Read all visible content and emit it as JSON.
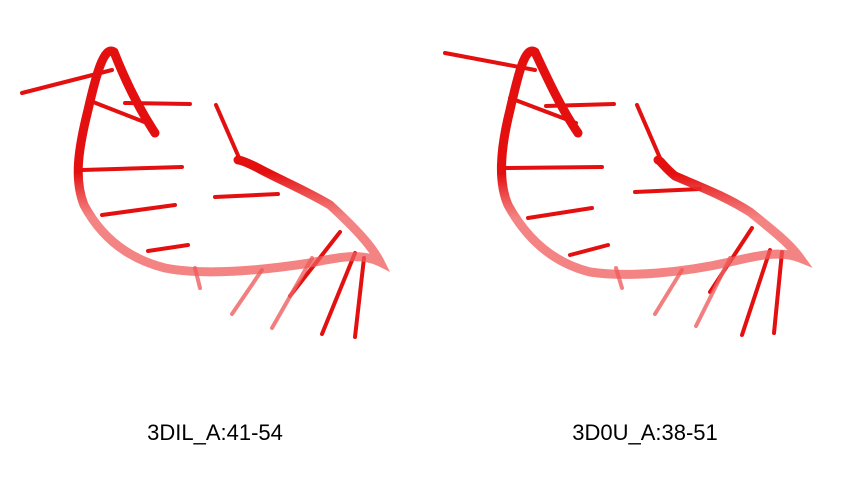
{
  "structures": [
    {
      "label": "3DIL_A:41-54",
      "color": "#e41010"
    },
    {
      "label": "3D0U_A:38-51",
      "color": "#e41010"
    }
  ]
}
